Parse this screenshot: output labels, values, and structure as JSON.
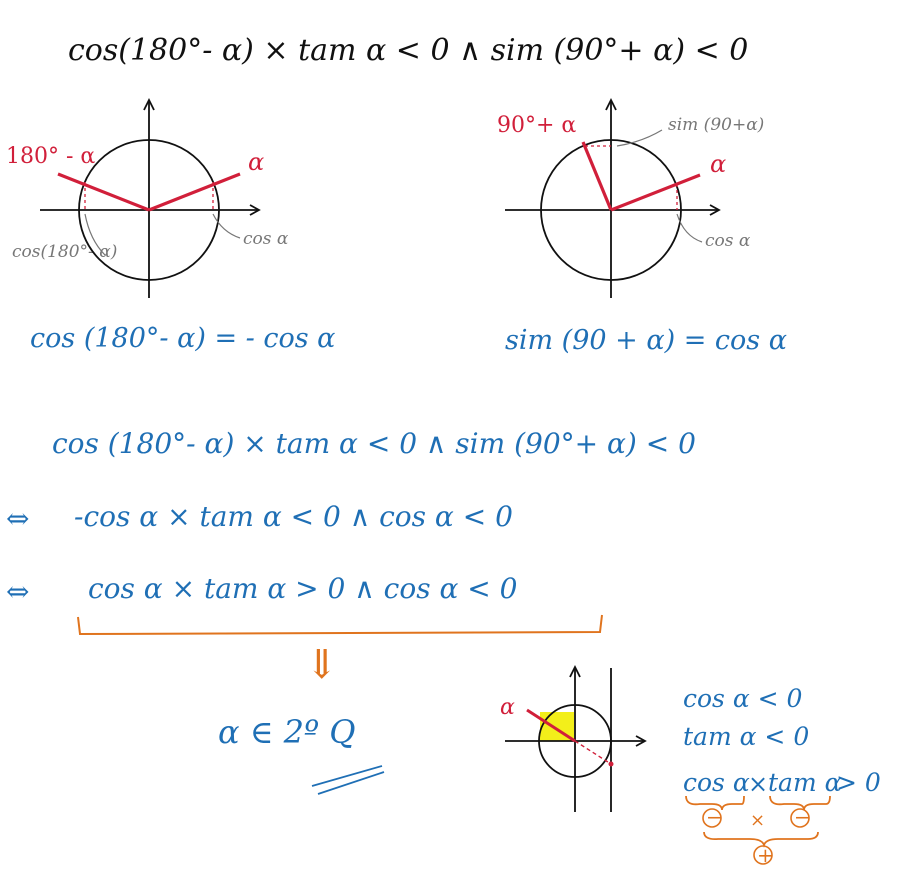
{
  "colors": {
    "ink": "#111111",
    "blue": "#1f6fb5",
    "red": "#d11f3a",
    "gray": "#777777",
    "orange": "#e0741e",
    "yellow": "#f3ef1a"
  },
  "header": {
    "equation": "cos(180°- α) × tam α < 0  ∧  sim (90°+ α) < 0"
  },
  "diagram_left": {
    "angle_label_supp": "180° - α",
    "angle_label": "α",
    "cos_label": "cos α",
    "cos_supp_label": "cos(180°- α)",
    "identity": "cos (180°- α) = - cos α"
  },
  "diagram_right": {
    "angle_label_shift": "90°+ α",
    "angle_label": "α",
    "sin_label": "sim (90+α)",
    "cos_label": "cos α",
    "identity": "sim (90 + α) = cos α"
  },
  "derivation": {
    "line1": "cos (180°- α) × tam α < 0  ∧  sim (90°+ α) < 0",
    "line2_arrow": "⇔",
    "line2": "-cos α × tam α < 0   ∧   cos α < 0",
    "line3_arrow": "⇔",
    "line3": "cos α × tam α > 0   ∧   cos α < 0",
    "implies": "⇓",
    "conclusion": "α ∈ 2º Q"
  },
  "diagram_bottom": {
    "angle_label": "α"
  },
  "sign_notes": {
    "cos": "cos α < 0",
    "tan": "tam α < 0",
    "product_cos": "cos α",
    "product_times": "×",
    "product_tan": "tam α",
    "product_rest": "> 0",
    "sign_minus_1": "−",
    "sign_times": "×",
    "sign_minus_2": "−",
    "sign_plus": "+"
  }
}
